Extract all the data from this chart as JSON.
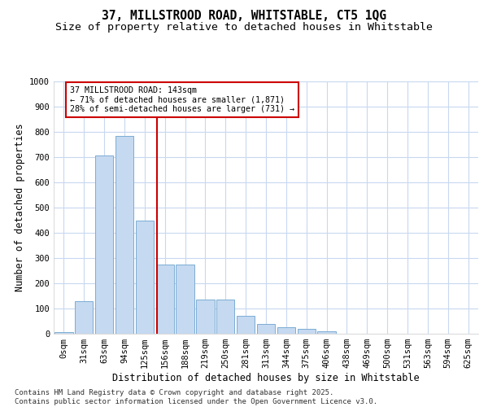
{
  "title1": "37, MILLSTROOD ROAD, WHITSTABLE, CT5 1QG",
  "title2": "Size of property relative to detached houses in Whitstable",
  "xlabel": "Distribution of detached houses by size in Whitstable",
  "ylabel": "Number of detached properties",
  "annotation_title": "37 MILLSTROOD ROAD: 143sqm",
  "annotation_line2": "← 71% of detached houses are smaller (1,871)",
  "annotation_line3": "28% of semi-detached houses are larger (731) →",
  "footer_line1": "Contains HM Land Registry data © Crown copyright and database right 2025.",
  "footer_line2": "Contains public sector information licensed under the Open Government Licence v3.0.",
  "bar_labels": [
    "0sqm",
    "31sqm",
    "63sqm",
    "94sqm",
    "125sqm",
    "156sqm",
    "188sqm",
    "219sqm",
    "250sqm",
    "281sqm",
    "313sqm",
    "344sqm",
    "375sqm",
    "406sqm",
    "438sqm",
    "469sqm",
    "500sqm",
    "531sqm",
    "563sqm",
    "594sqm",
    "625sqm"
  ],
  "bar_values": [
    5,
    130,
    705,
    785,
    450,
    275,
    275,
    135,
    135,
    70,
    40,
    25,
    20,
    10,
    0,
    0,
    0,
    0,
    0,
    0,
    0
  ],
  "bar_color": "#c5d9f0",
  "bar_edge_color": "#7badd4",
  "vline_color": "#cc0000",
  "annotation_box_color": "#ffffff",
  "annotation_border_color": "#cc0000",
  "background_color": "#ffffff",
  "plot_bg_color": "#ffffff",
  "grid_color": "#c8d8f0",
  "ylim": [
    0,
    1000
  ],
  "yticks": [
    0,
    100,
    200,
    300,
    400,
    500,
    600,
    700,
    800,
    900,
    1000
  ],
  "title_fontsize": 10.5,
  "subtitle_fontsize": 9.5,
  "axis_label_fontsize": 8.5,
  "tick_fontsize": 7.5,
  "footer_fontsize": 6.5
}
